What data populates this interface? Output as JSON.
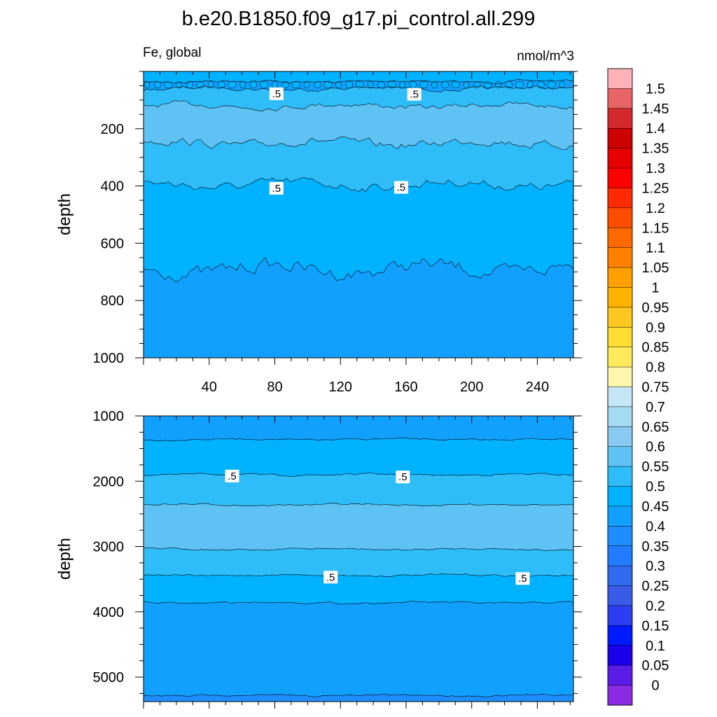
{
  "title": "b.e20.B1850.f09_g17.pi_control.all.299",
  "chart_data": {
    "type": "contour",
    "variable": "Fe, global",
    "units": "nmol/m^3",
    "x": {
      "min": 0,
      "max": 262,
      "ticks": [
        40,
        80,
        120,
        160,
        200,
        240
      ],
      "tick_labels": [
        "40",
        "80",
        "120",
        "160",
        "200",
        "240"
      ]
    },
    "upper_panel": {
      "ylabel": "depth",
      "ylim": [
        0,
        1000
      ],
      "y_ticks": [
        200,
        400,
        600,
        800,
        1000
      ],
      "y_tick_labels": [
        "200",
        "400",
        "600",
        "800",
        "1000"
      ],
      "bands": [
        {
          "from_depth": 0,
          "to_depth": 35,
          "level": "0.45-0.5"
        },
        {
          "from_depth": 35,
          "to_depth": 60,
          "level": "0.4-0.45"
        },
        {
          "from_depth": 60,
          "to_depth": 120,
          "level": "0.5-0.55"
        },
        {
          "from_depth": 120,
          "to_depth": 250,
          "level": "0.55-0.6"
        },
        {
          "from_depth": 250,
          "to_depth": 395,
          "level": "0.5-0.55"
        },
        {
          "from_depth": 395,
          "to_depth": 690,
          "level": "0.45-0.5"
        },
        {
          "from_depth": 690,
          "to_depth": 1000,
          "level": "0.4-0.45"
        }
      ],
      "contour_labels": [
        {
          "text": ".5",
          "x": 81,
          "depth": 78
        },
        {
          "text": ".5",
          "x": 165,
          "depth": 80
        },
        {
          "text": ".5",
          "x": 81,
          "depth": 408
        },
        {
          "text": ".5",
          "x": 157,
          "depth": 405
        }
      ]
    },
    "lower_panel": {
      "ylabel": "depth",
      "ylim": [
        1000,
        5375
      ],
      "y_ticks": [
        1000,
        2000,
        3000,
        4000,
        5000
      ],
      "y_tick_labels": [
        "1000",
        "2000",
        "3000",
        "4000",
        "5000"
      ],
      "bands": [
        {
          "from_depth": 1000,
          "to_depth": 1360,
          "level": "0.4-0.45"
        },
        {
          "from_depth": 1360,
          "to_depth": 1900,
          "level": "0.45-0.5"
        },
        {
          "from_depth": 1900,
          "to_depth": 2360,
          "level": "0.5-0.55"
        },
        {
          "from_depth": 2360,
          "to_depth": 3040,
          "level": "0.55-0.6"
        },
        {
          "from_depth": 3040,
          "to_depth": 3440,
          "level": "0.5-0.55"
        },
        {
          "from_depth": 3440,
          "to_depth": 3860,
          "level": "0.45-0.5"
        },
        {
          "from_depth": 3860,
          "to_depth": 5280,
          "level": "0.4-0.45"
        },
        {
          "from_depth": 5280,
          "to_depth": 5375,
          "level": "0.35-0.4"
        }
      ],
      "contour_labels": [
        {
          "text": ".5",
          "x": 54,
          "depth": 1920
        },
        {
          "text": ".5",
          "x": 158,
          "depth": 1935
        },
        {
          "text": ".5",
          "x": 114,
          "depth": 3470
        },
        {
          "text": ".5",
          "x": 231,
          "depth": 3490
        }
      ]
    },
    "colorbar": {
      "levels": [
        "1.5",
        "1.45",
        "1.4",
        "1.35",
        "1.3",
        "1.25",
        "1.2",
        "1.15",
        "1.1",
        "1.05",
        "1",
        "0.95",
        "0.9",
        "0.85",
        "0.8",
        "0.75",
        "0.7",
        "0.65",
        "0.6",
        "0.55",
        "0.5",
        "0.45",
        "0.4",
        "0.35",
        "0.3",
        "0.25",
        "0.2",
        "0.15",
        "0.1",
        "0.05",
        "0"
      ],
      "colors_top_to_bottom": [
        "#ffb3b8",
        "#e86466",
        "#d42a2e",
        "#cc0000",
        "#e60000",
        "#ff0000",
        "#ff2a00",
        "#ff4d00",
        "#ff6a00",
        "#ff8000",
        "#ffa000",
        "#ffb300",
        "#ffc71f",
        "#ffdd33",
        "#ffea5c",
        "#fff7ae",
        "#c4e6f5",
        "#a4daf2",
        "#89cbf0",
        "#5fc2f4",
        "#2ebdf8",
        "#00b2ff",
        "#12a0ff",
        "#1e8eff",
        "#227cff",
        "#2f6cf0",
        "#3a5ae8",
        "#2b3ef0",
        "#0019ff",
        "#1a00e8",
        "#5a1ce6",
        "#8b2be3"
      ]
    }
  }
}
